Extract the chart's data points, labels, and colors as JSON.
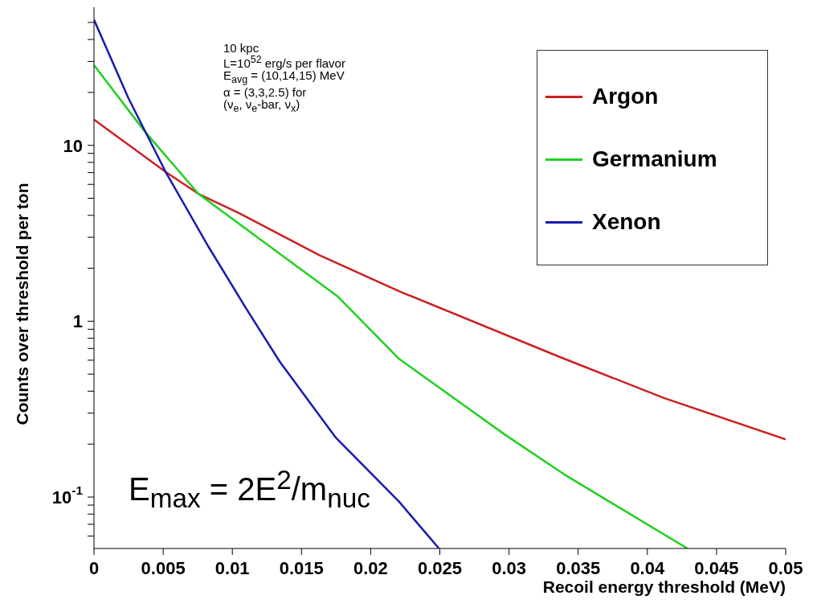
{
  "chart_data": {
    "type": "line",
    "xlabel": "Recoil energy threshold (MeV)",
    "ylabel": "Counts over threshold per ton",
    "log": "y",
    "grid": false,
    "legend": "top right",
    "marker": "none",
    "line_style": "solid",
    "xlim": [
      0,
      0.05
    ],
    "xticks": [
      0,
      0.005,
      0.01,
      0.015,
      0.02,
      0.025,
      0.03,
      0.035,
      0.04,
      0.045,
      0.05
    ],
    "ylim": [
      0.051,
      61
    ],
    "yticks": [
      {
        "value": 0.06,
        "label": null
      },
      {
        "value": 0.07,
        "label": null
      },
      {
        "value": 0.08,
        "label": null
      },
      {
        "value": 0.09,
        "label": null
      },
      {
        "value": 0.1,
        "label": "10$^{-1}$"
      },
      {
        "value": 0.2,
        "label": null
      },
      {
        "value": 0.3,
        "label": null
      },
      {
        "value": 0.4,
        "label": null
      },
      {
        "value": 0.5,
        "label": null
      },
      {
        "value": 0.6,
        "label": null
      },
      {
        "value": 0.7,
        "label": null
      },
      {
        "value": 0.8,
        "label": null
      },
      {
        "value": 0.9,
        "label": null
      },
      1,
      {
        "value": 2,
        "label": null
      },
      {
        "value": 3,
        "label": null
      },
      {
        "value": 4,
        "label": null
      },
      {
        "value": 5,
        "label": null
      },
      {
        "value": 6,
        "label": null
      },
      {
        "value": 7,
        "label": null
      },
      {
        "value": 8,
        "label": null
      },
      {
        "value": 9,
        "label": null
      },
      10,
      {
        "value": 20,
        "label": null
      },
      {
        "value": 30,
        "label": null
      },
      {
        "value": 40,
        "label": null
      },
      {
        "value": 50,
        "label": null
      }
    ],
    "series": [
      {
        "name": "Argon",
        "color": "#cc2020",
        "x": [
          0,
          0.00518,
          0.00755,
          0.0105,
          0.0163,
          0.02206,
          0.03358,
          0.04124,
          0.05
        ],
        "values": [
          14.0,
          7.06,
          5.3,
          4.11,
          2.37,
          1.48,
          0.63,
          0.365,
          0.213
        ]
      },
      {
        "name": "Germanium",
        "color": "#20d020",
        "x": [
          0,
          0.00363,
          0.00755,
          0.01763,
          0.02206,
          0.02972,
          0.03416,
          0.0429
        ],
        "values": [
          28.6,
          12.1,
          5.3,
          1.38,
          0.61,
          0.226,
          0.132,
          0.051
        ]
      },
      {
        "name": "Xenon",
        "color": "#1a1ab0",
        "x": [
          0,
          0.00248,
          0.00518,
          0.00824,
          0.011,
          0.01342,
          0.01745,
          0.02206,
          0.02494
        ],
        "values": [
          51.8,
          18.6,
          7.06,
          2.68,
          1.18,
          0.59,
          0.219,
          0.094,
          0.051
        ]
      }
    ],
    "annotations": [
      "10 kpc",
      "L=10$^{52}$ erg/s per flavor",
      "E$_{avg}$ = (10,14,15) MeV",
      "α = (3,3,2.5) for",
      "(ν$_{e}$, ν$_{e}$-bar, ν$_{x}$)",
      "E$_{max}$ = 2E$^{2}$/m$_{nuc}$"
    ]
  }
}
